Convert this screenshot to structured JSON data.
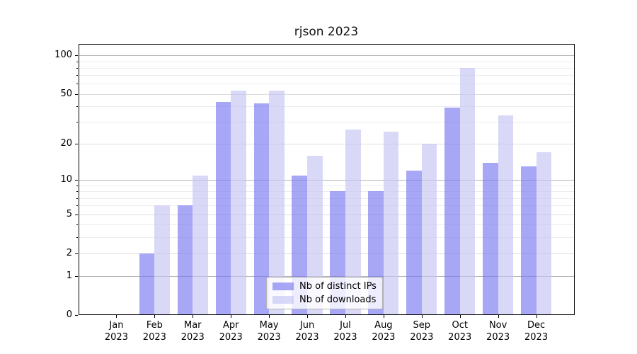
{
  "title": "rjson 2023",
  "chart_data": {
    "type": "bar",
    "title": "rjson 2023",
    "categories": [
      "Jan",
      "Feb",
      "Mar",
      "Apr",
      "May",
      "Jun",
      "Jul",
      "Aug",
      "Sep",
      "Oct",
      "Nov",
      "Dec"
    ],
    "category_year": "2023",
    "series": [
      {
        "name": "Nb of distinct IPs",
        "color": "#7878f0",
        "alpha": 0.65,
        "values": [
          0,
          2,
          6,
          43,
          42,
          11,
          8,
          8,
          12,
          39,
          14,
          13
        ]
      },
      {
        "name": "Nb of downloads",
        "color": "#c4c4f2",
        "alpha": 0.65,
        "values": [
          0,
          6,
          11,
          53,
          53,
          16,
          26,
          25,
          20,
          80,
          34,
          17
        ]
      }
    ],
    "y_scale": "log1p",
    "ylim": [
      0,
      123
    ],
    "y_ticks": [
      0,
      1,
      2,
      5,
      10,
      20,
      50,
      100
    ],
    "y_ticks_strong": [
      1,
      10,
      100
    ],
    "y_ticks_minor": [
      3,
      4,
      6,
      7,
      8,
      9,
      30,
      40,
      60,
      70,
      80,
      90
    ],
    "grid": true,
    "legend_position": "lower center"
  },
  "colors": {
    "grid_strong": "#b4b4b4",
    "grid_mid": "#dcdcdc",
    "grid_minor": "#ededed",
    "spine": "#000000",
    "text": "#000000",
    "legend_border": "#b3b3b3"
  }
}
